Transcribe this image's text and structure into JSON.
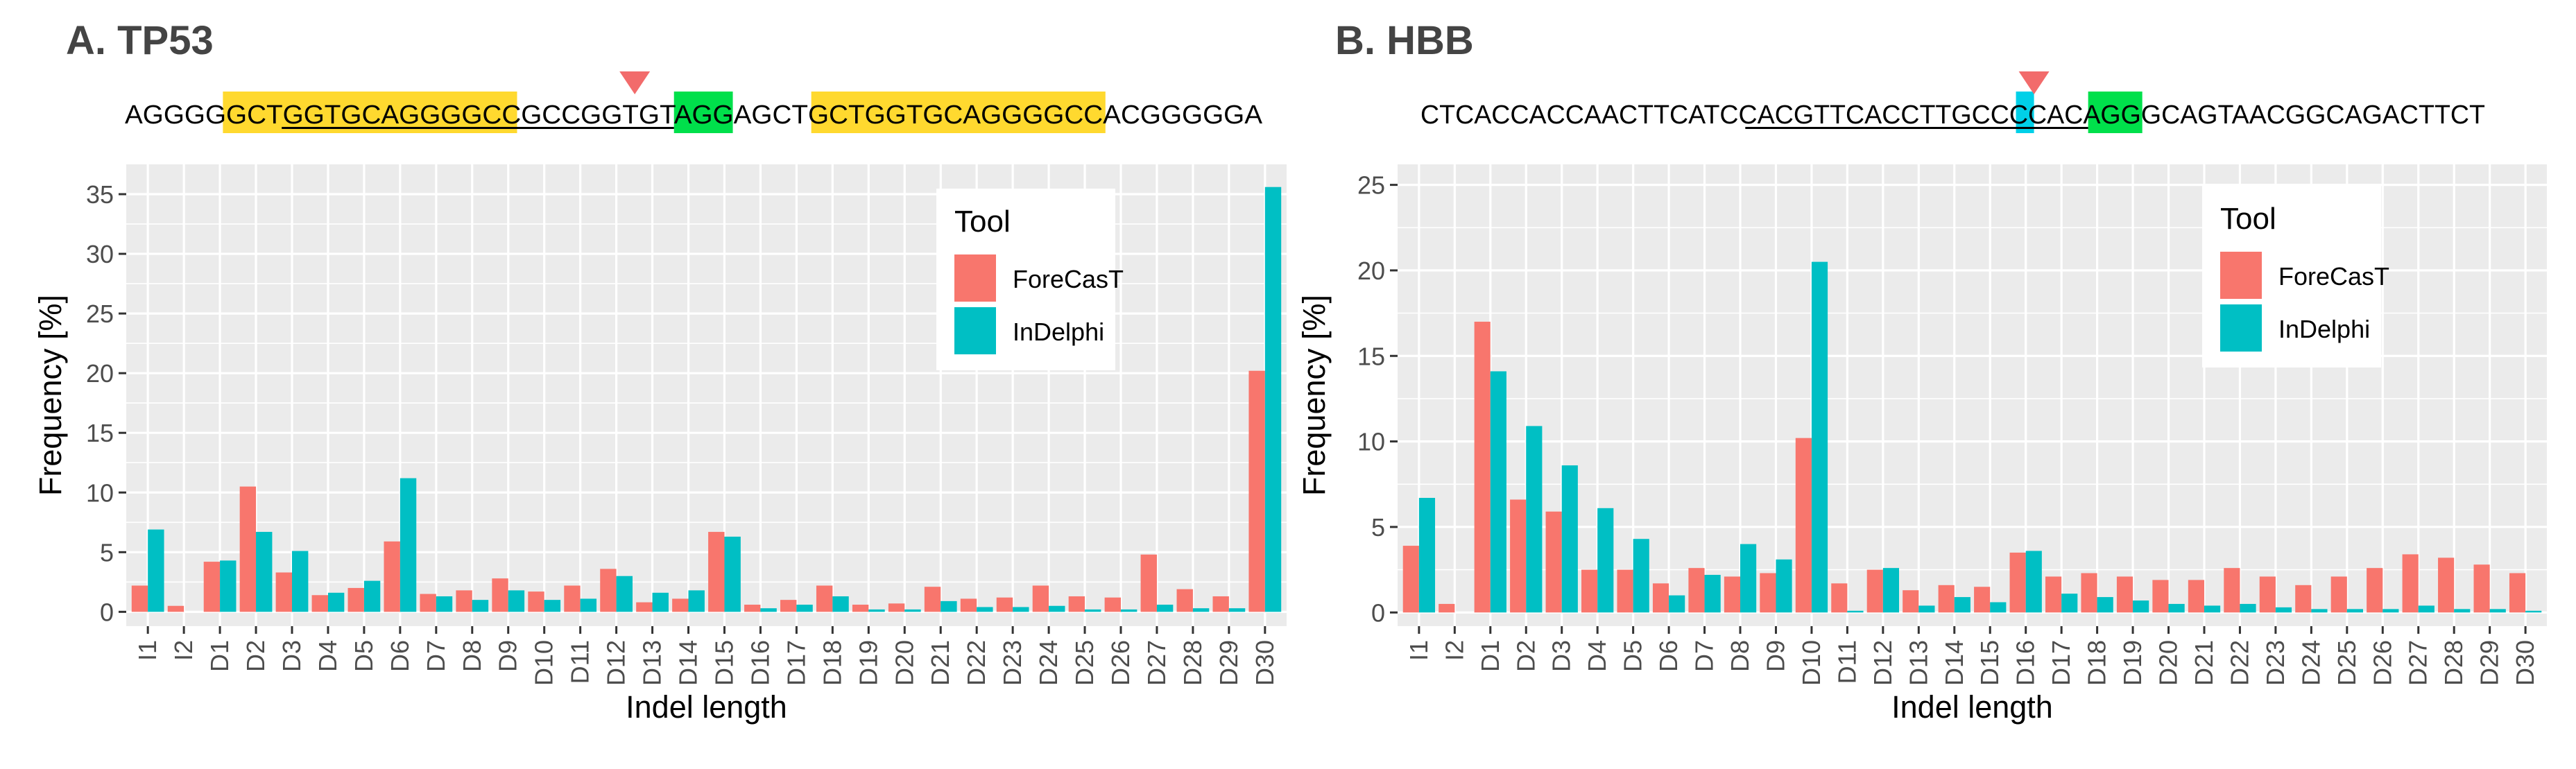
{
  "colors": {
    "forecast": "#F8766D",
    "indelphi": "#00BFC4",
    "panel_bg": "#EBEBEB",
    "grid": "#FFFFFF",
    "highlight_yellow": "#FFD92F",
    "highlight_green": "#00E04B",
    "highlight_cyan": "#00D0E8",
    "marker": "#F26B6B",
    "title": "#444444"
  },
  "chart_data": [
    {
      "type": "bar",
      "panel_title": "A. TP53",
      "sequence": "AGGGGGCTGGTGCAGGGGCCGCCGGTGTAGGAGCTGCTGGTGCAGGGGCCACGGGGGA",
      "sequence_marks": {
        "yellow_spans": [
          [
            5,
            19
          ],
          [
            35,
            49
          ]
        ],
        "green_spans": [
          [
            28,
            30
          ]
        ],
        "underline_spans": [
          [
            8,
            27
          ]
        ],
        "cut_after": 25
      },
      "xlabel": "Indel length",
      "ylabel": "Frequency [%]",
      "ylim": [
        -1.2,
        37.5
      ],
      "yticks": [
        0,
        5,
        10,
        15,
        20,
        25,
        30,
        35
      ],
      "legend": {
        "title": "Tool",
        "items": [
          "ForeCasT",
          "InDelphi"
        ],
        "position": "top-right"
      },
      "categories": [
        "I1",
        "I2",
        "D1",
        "D2",
        "D3",
        "D4",
        "D5",
        "D6",
        "D7",
        "D8",
        "D9",
        "D10",
        "D11",
        "D12",
        "D13",
        "D14",
        "D15",
        "D16",
        "D17",
        "D18",
        "D19",
        "D20",
        "D21",
        "D22",
        "D23",
        "D24",
        "D25",
        "D26",
        "D27",
        "D28",
        "D29",
        "D30"
      ],
      "series": [
        {
          "name": "ForeCasT",
          "values": [
            2.2,
            0.5,
            4.2,
            10.5,
            3.3,
            1.4,
            2.0,
            5.9,
            1.5,
            1.8,
            2.8,
            1.7,
            2.2,
            3.6,
            0.8,
            1.1,
            6.7,
            0.6,
            1.0,
            2.2,
            0.6,
            0.7,
            2.1,
            1.1,
            1.2,
            2.2,
            1.3,
            1.2,
            4.8,
            1.9,
            1.3,
            20.2
          ]
        },
        {
          "name": "InDelphi",
          "values": [
            6.9,
            0.0,
            4.3,
            6.7,
            5.1,
            1.6,
            2.6,
            11.2,
            1.3,
            1.0,
            1.8,
            1.0,
            1.1,
            3.0,
            1.6,
            1.8,
            6.3,
            0.3,
            0.6,
            1.3,
            0.2,
            0.2,
            0.9,
            0.4,
            0.4,
            0.5,
            0.2,
            0.2,
            0.6,
            0.3,
            0.3,
            35.6
          ]
        }
      ]
    },
    {
      "type": "bar",
      "panel_title": "B. HBB",
      "sequence": "CTCACCACCAACTTCATCCACGTTCACCTTGCCCCACAGGGCAGTAACGGCAGACTTCT",
      "sequence_marks": {
        "yellow_spans": [],
        "green_spans": [
          [
            37,
            39
          ]
        ],
        "cyan_spans": [
          [
            33,
            33
          ]
        ],
        "underline_spans": [
          [
            18,
            36
          ]
        ],
        "cut_after": 33
      },
      "xlabel": "Indel length",
      "ylabel": "Frequency [%]",
      "ylim": [
        -0.8,
        26.2
      ],
      "yticks": [
        0,
        5,
        10,
        15,
        20,
        25
      ],
      "legend": {
        "title": "Tool",
        "items": [
          "ForeCasT",
          "InDelphi"
        ],
        "position": "top-right"
      },
      "categories": [
        "I1",
        "I2",
        "D1",
        "D2",
        "D3",
        "D4",
        "D5",
        "D6",
        "D7",
        "D8",
        "D9",
        "D10",
        "D11",
        "D12",
        "D13",
        "D14",
        "D15",
        "D16",
        "D17",
        "D18",
        "D19",
        "D20",
        "D21",
        "D22",
        "D23",
        "D24",
        "D25",
        "D26",
        "D27",
        "D28",
        "D29",
        "D30"
      ],
      "series": [
        {
          "name": "ForeCasT",
          "values": [
            3.9,
            0.5,
            17.0,
            6.6,
            5.9,
            2.5,
            2.5,
            1.7,
            2.6,
            2.1,
            2.3,
            10.2,
            1.7,
            2.5,
            1.3,
            1.6,
            1.5,
            3.5,
            2.1,
            2.3,
            2.1,
            1.9,
            1.9,
            2.6,
            2.1,
            1.6,
            2.1,
            2.6,
            3.4,
            3.2,
            2.8,
            2.3
          ]
        },
        {
          "name": "InDelphi",
          "values": [
            6.7,
            0.0,
            14.1,
            10.9,
            8.6,
            6.1,
            4.3,
            1.0,
            2.2,
            4.0,
            3.1,
            20.5,
            0.1,
            2.6,
            0.4,
            0.9,
            0.6,
            3.6,
            1.1,
            0.9,
            0.7,
            0.5,
            0.4,
            0.5,
            0.3,
            0.2,
            0.2,
            0.2,
            0.4,
            0.2,
            0.2,
            0.1
          ]
        }
      ]
    }
  ]
}
